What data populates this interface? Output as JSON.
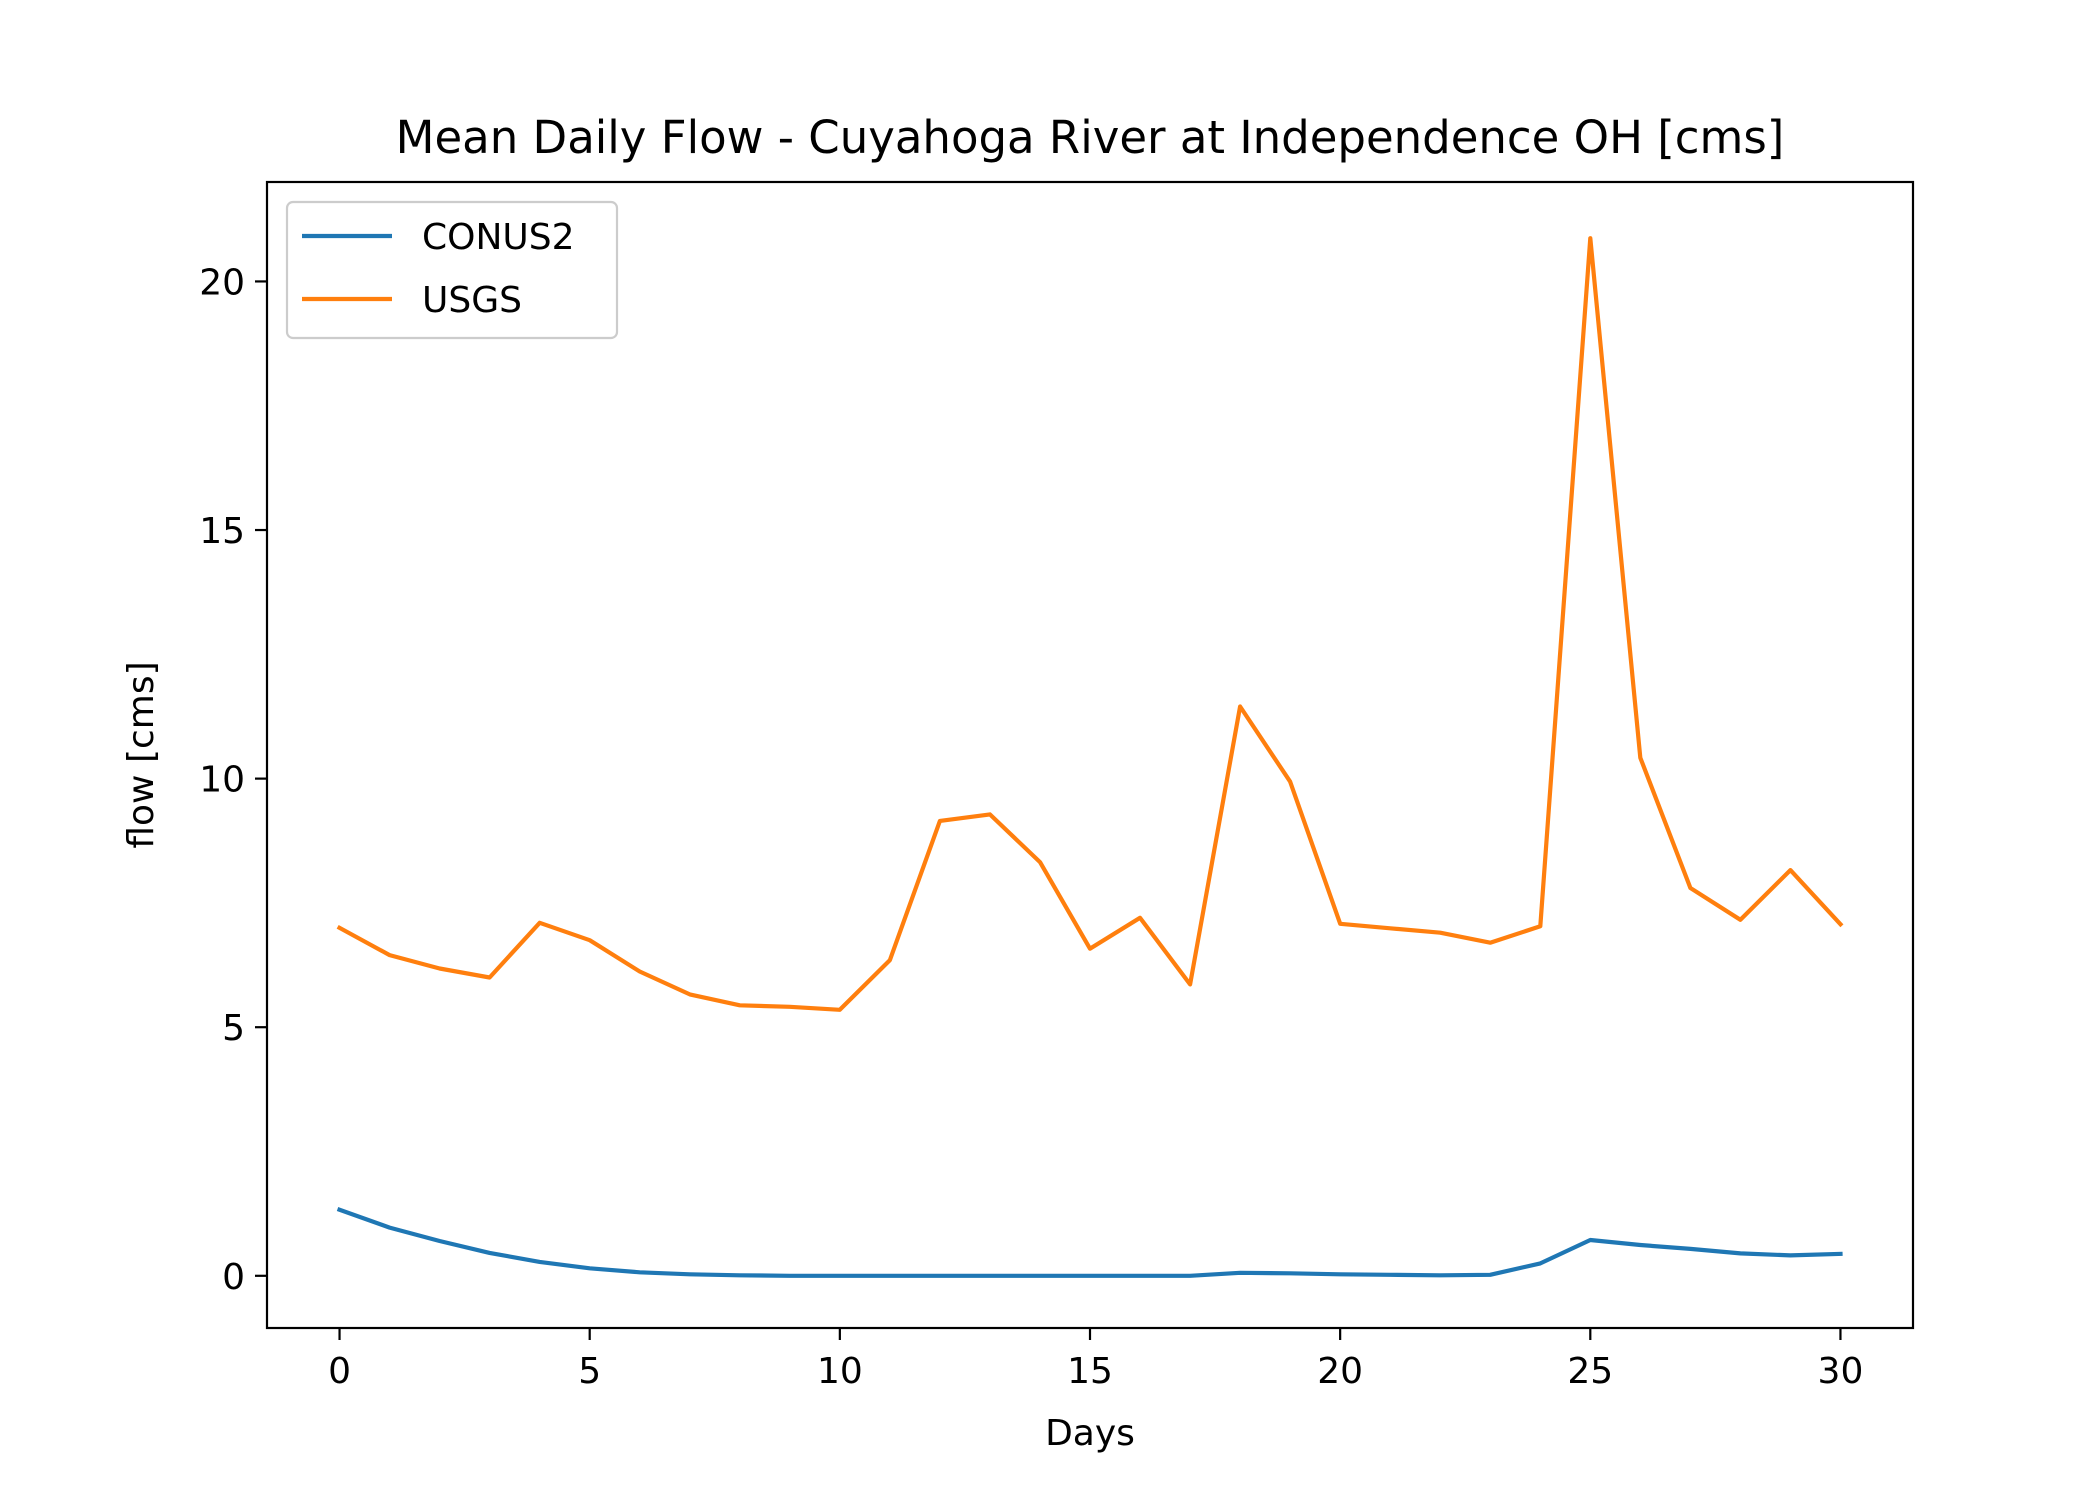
{
  "chart_data": {
    "type": "line",
    "title": "Mean Daily Flow - Cuyahoga River at Independence OH [cms]",
    "xlabel": "Days",
    "ylabel": "flow [cms]",
    "xlim": [
      -1.45,
      31.45
    ],
    "ylim": [
      -1.05,
      22.0
    ],
    "xticks": [
      0,
      5,
      10,
      15,
      20,
      25,
      30
    ],
    "yticks": [
      0,
      5,
      10,
      15,
      20
    ],
    "grid": false,
    "legend": "top-left",
    "x": [
      0,
      1,
      2,
      3,
      4,
      5,
      6,
      7,
      8,
      9,
      10,
      11,
      12,
      13,
      14,
      15,
      16,
      17,
      18,
      19,
      20,
      21,
      22,
      23,
      24,
      25,
      26,
      27,
      28,
      29,
      30
    ],
    "series": [
      {
        "name": "CONUS2",
        "color": "#1f77b4",
        "values": [
          1.33,
          0.97,
          0.7,
          0.46,
          0.28,
          0.15,
          0.07,
          0.03,
          0.01,
          0.0,
          0.0,
          0.0,
          0.0,
          0.0,
          0.0,
          0.0,
          0.0,
          0.0,
          0.06,
          0.05,
          0.03,
          0.02,
          0.01,
          0.02,
          0.25,
          0.72,
          0.62,
          0.54,
          0.45,
          0.41,
          0.44
        ]
      },
      {
        "name": "USGS",
        "color": "#ff7f0e",
        "values": [
          7.0,
          6.45,
          6.18,
          6.0,
          7.1,
          6.75,
          6.12,
          5.66,
          5.44,
          5.41,
          5.35,
          6.35,
          9.15,
          9.28,
          8.32,
          6.58,
          7.2,
          5.86,
          11.45,
          9.94,
          7.08,
          6.99,
          6.9,
          6.7,
          7.03,
          20.87,
          10.42,
          7.8,
          7.16,
          8.16,
          7.07
        ]
      }
    ]
  }
}
